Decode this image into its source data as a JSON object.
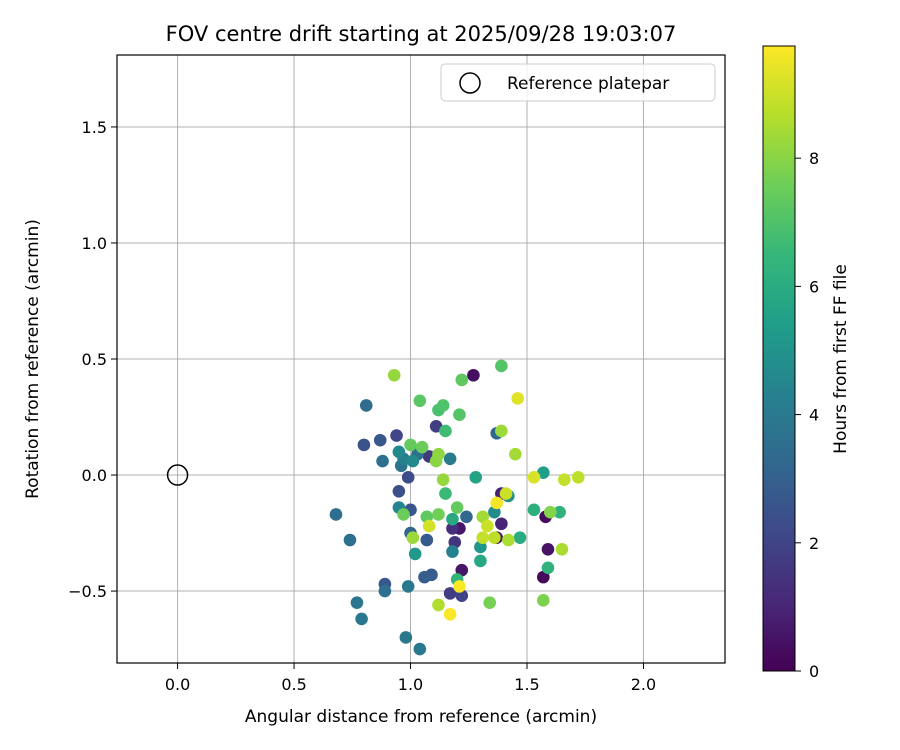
{
  "chart_data": {
    "type": "scatter",
    "title": "FOV centre drift starting at 2025/09/28 19:03:07",
    "xlabel": "Angular distance from reference (arcmin)",
    "ylabel": "Rotation from reference (arcmin)",
    "xlim": [
      -0.26,
      2.35
    ],
    "ylim": [
      -0.81,
      1.81
    ],
    "xticks": [
      0.0,
      0.5,
      1.0,
      1.5,
      2.0
    ],
    "xtick_labels": [
      "0.0",
      "0.5",
      "1.0",
      "1.5",
      "2.0"
    ],
    "yticks": [
      -0.5,
      0.0,
      0.5,
      1.0,
      1.5
    ],
    "ytick_labels": [
      "−0.5",
      "0.0",
      "0.5",
      "1.0",
      "1.5"
    ],
    "grid": true,
    "legend": {
      "position": "top-right",
      "entries": [
        "Reference platepar"
      ]
    },
    "reference_point": {
      "x": 0.0,
      "y": 0.0,
      "label": "Reference platepar"
    },
    "colorbar": {
      "label": "Hours from first FF file",
      "range": [
        0,
        9.75
      ],
      "ticks": [
        0,
        2,
        4,
        6,
        8
      ],
      "tick_labels": [
        "0",
        "2",
        "4",
        "6",
        "8"
      ],
      "colormap": [
        "#440154",
        "#482878",
        "#3e4989",
        "#31688e",
        "#26828e",
        "#1f9e89",
        "#35b779",
        "#6ece58",
        "#b5de2b",
        "#fde725"
      ]
    },
    "points": [
      {
        "x": 1.27,
        "y": 0.43,
        "c": 0.4
      },
      {
        "x": 1.21,
        "y": -0.23,
        "c": 0.6
      },
      {
        "x": 1.22,
        "y": -0.41,
        "c": 0.6
      },
      {
        "x": 1.37,
        "y": -0.27,
        "c": 0.7
      },
      {
        "x": 1.58,
        "y": -0.18,
        "c": 0.3
      },
      {
        "x": 1.59,
        "y": -0.32,
        "c": 0.5
      },
      {
        "x": 1.57,
        "y": -0.44,
        "c": 0.2
      },
      {
        "x": 1.39,
        "y": -0.08,
        "c": 0.9
      },
      {
        "x": 1.39,
        "y": -0.21,
        "c": 1.0
      },
      {
        "x": 1.18,
        "y": -0.23,
        "c": 1.3
      },
      {
        "x": 1.19,
        "y": -0.29,
        "c": 1.5
      },
      {
        "x": 1.11,
        "y": 0.21,
        "c": 1.8
      },
      {
        "x": 1.08,
        "y": 0.08,
        "c": 1.6
      },
      {
        "x": 1.17,
        "y": -0.51,
        "c": 1.8
      },
      {
        "x": 1.22,
        "y": -0.52,
        "c": 2.0
      },
      {
        "x": 0.94,
        "y": 0.17,
        "c": 2.1
      },
      {
        "x": 0.99,
        "y": -0.01,
        "c": 2.3
      },
      {
        "x": 1.0,
        "y": -0.15,
        "c": 2.6
      },
      {
        "x": 0.95,
        "y": -0.07,
        "c": 2.4
      },
      {
        "x": 0.8,
        "y": 0.13,
        "c": 2.5
      },
      {
        "x": 0.87,
        "y": 0.15,
        "c": 2.7
      },
      {
        "x": 1.09,
        "y": -0.43,
        "c": 2.8
      },
      {
        "x": 1.06,
        "y": -0.44,
        "c": 2.9
      },
      {
        "x": 0.89,
        "y": -0.47,
        "c": 2.7
      },
      {
        "x": 1.07,
        "y": -0.28,
        "c": 2.8
      },
      {
        "x": 1.0,
        "y": -0.25,
        "c": 3.1
      },
      {
        "x": 1.24,
        "y": -0.18,
        "c": 3.2
      },
      {
        "x": 1.37,
        "y": 0.18,
        "c": 3.3
      },
      {
        "x": 0.81,
        "y": 0.3,
        "c": 3.4
      },
      {
        "x": 0.88,
        "y": 0.06,
        "c": 3.6
      },
      {
        "x": 0.96,
        "y": 0.04,
        "c": 3.7
      },
      {
        "x": 1.03,
        "y": 0.09,
        "c": 3.5
      },
      {
        "x": 0.89,
        "y": -0.5,
        "c": 3.5
      },
      {
        "x": 0.68,
        "y": -0.17,
        "c": 3.5
      },
      {
        "x": 0.74,
        "y": -0.28,
        "c": 3.6
      },
      {
        "x": 0.99,
        "y": -0.48,
        "c": 3.9
      },
      {
        "x": 0.77,
        "y": -0.55,
        "c": 3.8
      },
      {
        "x": 0.79,
        "y": -0.62,
        "c": 3.9
      },
      {
        "x": 0.98,
        "y": -0.7,
        "c": 3.9
      },
      {
        "x": 1.04,
        "y": -0.75,
        "c": 4.0
      },
      {
        "x": 1.17,
        "y": 0.07,
        "c": 4.1
      },
      {
        "x": 1.18,
        "y": -0.33,
        "c": 4.3
      },
      {
        "x": 0.95,
        "y": -0.14,
        "c": 4.4
      },
      {
        "x": 0.97,
        "y": 0.07,
        "c": 4.2
      },
      {
        "x": 0.95,
        "y": 0.1,
        "c": 4.6
      },
      {
        "x": 1.01,
        "y": 0.06,
        "c": 4.6
      },
      {
        "x": 1.36,
        "y": -0.16,
        "c": 4.7
      },
      {
        "x": 1.42,
        "y": -0.09,
        "c": 4.9
      },
      {
        "x": 1.3,
        "y": -0.31,
        "c": 5.1
      },
      {
        "x": 1.02,
        "y": -0.34,
        "c": 5.2
      },
      {
        "x": 1.57,
        "y": 0.01,
        "c": 5.4
      },
      {
        "x": 1.28,
        "y": -0.01,
        "c": 5.6
      },
      {
        "x": 1.3,
        "y": -0.37,
        "c": 5.8
      },
      {
        "x": 1.18,
        "y": -0.19,
        "c": 5.9
      },
      {
        "x": 1.47,
        "y": -0.27,
        "c": 6.0
      },
      {
        "x": 1.53,
        "y": -0.15,
        "c": 6.1
      },
      {
        "x": 1.59,
        "y": -0.4,
        "c": 6.3
      },
      {
        "x": 1.64,
        "y": -0.16,
        "c": 6.3
      },
      {
        "x": 1.2,
        "y": -0.45,
        "c": 6.4
      },
      {
        "x": 1.15,
        "y": -0.08,
        "c": 6.6
      },
      {
        "x": 1.15,
        "y": 0.19,
        "c": 6.7
      },
      {
        "x": 1.12,
        "y": 0.28,
        "c": 6.9
      },
      {
        "x": 1.14,
        "y": 0.3,
        "c": 7.0
      },
      {
        "x": 1.21,
        "y": 0.26,
        "c": 7.1
      },
      {
        "x": 1.22,
        "y": 0.41,
        "c": 7.3
      },
      {
        "x": 1.04,
        "y": 0.32,
        "c": 7.2
      },
      {
        "x": 1.39,
        "y": 0.47,
        "c": 7.1
      },
      {
        "x": 1.0,
        "y": 0.13,
        "c": 7.4
      },
      {
        "x": 1.05,
        "y": 0.12,
        "c": 7.5
      },
      {
        "x": 1.2,
        "y": -0.14,
        "c": 7.4
      },
      {
        "x": 1.07,
        "y": -0.18,
        "c": 7.3
      },
      {
        "x": 0.97,
        "y": -0.17,
        "c": 7.5
      },
      {
        "x": 1.12,
        "y": -0.17,
        "c": 7.6
      },
      {
        "x": 1.34,
        "y": -0.55,
        "c": 7.7
      },
      {
        "x": 1.57,
        "y": -0.54,
        "c": 7.8
      },
      {
        "x": 1.6,
        "y": -0.16,
        "c": 7.9
      },
      {
        "x": 1.11,
        "y": 0.06,
        "c": 8.0
      },
      {
        "x": 1.12,
        "y": 0.09,
        "c": 8.1
      },
      {
        "x": 1.14,
        "y": -0.02,
        "c": 8.2
      },
      {
        "x": 1.01,
        "y": -0.27,
        "c": 8.3
      },
      {
        "x": 1.31,
        "y": -0.18,
        "c": 8.4
      },
      {
        "x": 1.42,
        "y": -0.28,
        "c": 8.5
      },
      {
        "x": 1.39,
        "y": 0.19,
        "c": 8.3
      },
      {
        "x": 1.45,
        "y": 0.09,
        "c": 8.4
      },
      {
        "x": 0.93,
        "y": 0.43,
        "c": 8.2
      },
      {
        "x": 1.12,
        "y": -0.56,
        "c": 8.6
      },
      {
        "x": 1.65,
        "y": -0.32,
        "c": 8.5
      },
      {
        "x": 1.36,
        "y": -0.27,
        "c": 8.8
      },
      {
        "x": 1.31,
        "y": -0.27,
        "c": 8.9
      },
      {
        "x": 1.33,
        "y": -0.22,
        "c": 9.0
      },
      {
        "x": 1.41,
        "y": -0.08,
        "c": 9.0
      },
      {
        "x": 1.08,
        "y": -0.22,
        "c": 9.1
      },
      {
        "x": 1.46,
        "y": 0.33,
        "c": 9.3
      },
      {
        "x": 1.53,
        "y": -0.01,
        "c": 9.2
      },
      {
        "x": 1.66,
        "y": -0.02,
        "c": 8.9
      },
      {
        "x": 1.72,
        "y": -0.01,
        "c": 8.8
      },
      {
        "x": 1.37,
        "y": -0.12,
        "c": 9.6
      },
      {
        "x": 1.21,
        "y": -0.48,
        "c": 9.7
      },
      {
        "x": 1.17,
        "y": -0.6,
        "c": 9.7
      }
    ]
  }
}
